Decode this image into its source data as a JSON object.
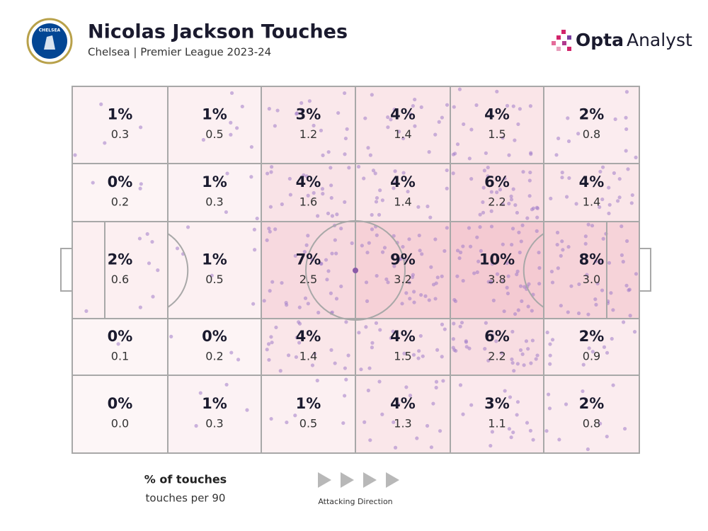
{
  "header": {
    "title": "Nicolas Jackson Touches",
    "subtitle": "Chelsea | Premier League 2023-24",
    "badge_text": "CHELSEA",
    "brand_bold": "Opta",
    "brand_light": "Analyst"
  },
  "pitch": {
    "zones": [
      [
        {
          "pct": "1%",
          "per90": "0.3"
        },
        {
          "pct": "1%",
          "per90": "0.5"
        },
        {
          "pct": "3%",
          "per90": "1.2"
        },
        {
          "pct": "4%",
          "per90": "1.4"
        },
        {
          "pct": "4%",
          "per90": "1.5"
        },
        {
          "pct": "2%",
          "per90": "0.8"
        }
      ],
      [
        {
          "pct": "0%",
          "per90": "0.2"
        },
        {
          "pct": "1%",
          "per90": "0.3"
        },
        {
          "pct": "4%",
          "per90": "1.6"
        },
        {
          "pct": "4%",
          "per90": "1.4"
        },
        {
          "pct": "6%",
          "per90": "2.2"
        },
        {
          "pct": "4%",
          "per90": "1.4"
        }
      ],
      [
        {
          "pct": "2%",
          "per90": "0.6"
        },
        {
          "pct": "1%",
          "per90": "0.5"
        },
        {
          "pct": "7%",
          "per90": "2.5"
        },
        {
          "pct": "9%",
          "per90": "3.2"
        },
        {
          "pct": "10%",
          "per90": "3.8"
        },
        {
          "pct": "8%",
          "per90": "3.0"
        }
      ],
      [
        {
          "pct": "0%",
          "per90": "0.1"
        },
        {
          "pct": "0%",
          "per90": "0.2"
        },
        {
          "pct": "4%",
          "per90": "1.4"
        },
        {
          "pct": "4%",
          "per90": "1.5"
        },
        {
          "pct": "6%",
          "per90": "2.2"
        },
        {
          "pct": "2%",
          "per90": "0.9"
        }
      ],
      [
        {
          "pct": "0%",
          "per90": "0.0"
        },
        {
          "pct": "1%",
          "per90": "0.3"
        },
        {
          "pct": "1%",
          "per90": "0.5"
        },
        {
          "pct": "4%",
          "per90": "1.3"
        },
        {
          "pct": "3%",
          "per90": "1.1"
        },
        {
          "pct": "2%",
          "per90": "0.8"
        }
      ]
    ]
  },
  "legend": {
    "primary": "% of touches",
    "secondary": "touches per 90",
    "direction": "Attacking Direction"
  }
}
